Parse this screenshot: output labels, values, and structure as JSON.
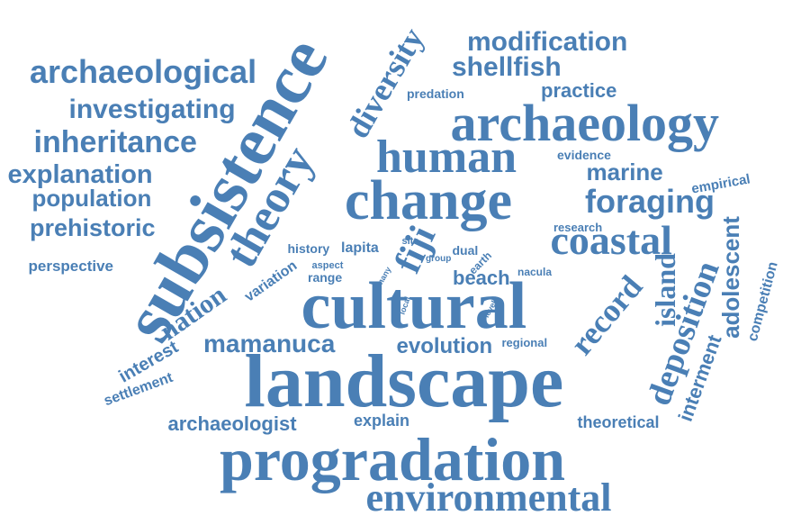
{
  "colors": {
    "word": "#4a7fb5",
    "background": "#ffffff"
  },
  "words": [
    {
      "id": "subsistence",
      "text": "subsistence"
    },
    {
      "id": "theory",
      "text": "theory"
    },
    {
      "id": "diversity",
      "text": "diversity"
    },
    {
      "id": "modification",
      "text": "modification"
    },
    {
      "id": "shellfish",
      "text": "shellfish"
    },
    {
      "id": "archaeological",
      "text": "archaeological"
    },
    {
      "id": "investigating",
      "text": "investigating"
    },
    {
      "id": "inheritance",
      "text": "inheritance"
    },
    {
      "id": "explanation",
      "text": "explanation"
    },
    {
      "id": "population",
      "text": "population"
    },
    {
      "id": "prehistoric",
      "text": "prehistoric"
    },
    {
      "id": "perspective",
      "text": "perspective"
    },
    {
      "id": "predation",
      "text": "predation"
    },
    {
      "id": "practice",
      "text": "practice"
    },
    {
      "id": "archaeology",
      "text": "archaeology"
    },
    {
      "id": "human",
      "text": "human"
    },
    {
      "id": "evidence",
      "text": "evidence"
    },
    {
      "id": "marine",
      "text": "marine"
    },
    {
      "id": "empirical",
      "text": "empirical"
    },
    {
      "id": "change",
      "text": "change"
    },
    {
      "id": "foraging",
      "text": "foraging"
    },
    {
      "id": "research",
      "text": "research"
    },
    {
      "id": "coastal",
      "text": "coastal"
    },
    {
      "id": "fiji",
      "text": "fiji"
    },
    {
      "id": "history",
      "text": "history"
    },
    {
      "id": "lapita",
      "text": "lapita"
    },
    {
      "id": "site",
      "text": "site"
    },
    {
      "id": "group",
      "text": "group"
    },
    {
      "id": "dual",
      "text": "dual"
    },
    {
      "id": "earth",
      "text": "earth"
    },
    {
      "id": "aspect",
      "text": "aspect"
    },
    {
      "id": "range",
      "text": "range"
    },
    {
      "id": "many",
      "text": "many"
    },
    {
      "id": "beach",
      "text": "beach"
    },
    {
      "id": "nacula",
      "text": "nacula"
    },
    {
      "id": "variation",
      "text": "variation"
    },
    {
      "id": "local",
      "text": "local"
    },
    {
      "id": "level",
      "text": "level"
    },
    {
      "id": "cultural",
      "text": "cultural"
    },
    {
      "id": "nation",
      "text": "nation"
    },
    {
      "id": "record",
      "text": "record"
    },
    {
      "id": "island",
      "text": "island"
    },
    {
      "id": "adolescent",
      "text": "adolescent"
    },
    {
      "id": "competition",
      "text": "competition"
    },
    {
      "id": "deposition",
      "text": "deposition"
    },
    {
      "id": "interment",
      "text": "interment"
    },
    {
      "id": "mamanuca",
      "text": "mamanuca"
    },
    {
      "id": "evolution",
      "text": "evolution"
    },
    {
      "id": "regional",
      "text": "regional"
    },
    {
      "id": "interest",
      "text": "interest"
    },
    {
      "id": "settlement",
      "text": "settlement"
    },
    {
      "id": "landscape",
      "text": "landscape"
    },
    {
      "id": "archaeologist",
      "text": "archaeologist"
    },
    {
      "id": "explain",
      "text": "explain"
    },
    {
      "id": "theoretical",
      "text": "theoretical"
    },
    {
      "id": "progradation",
      "text": "progradation"
    },
    {
      "id": "environmental",
      "text": "environmental"
    }
  ]
}
